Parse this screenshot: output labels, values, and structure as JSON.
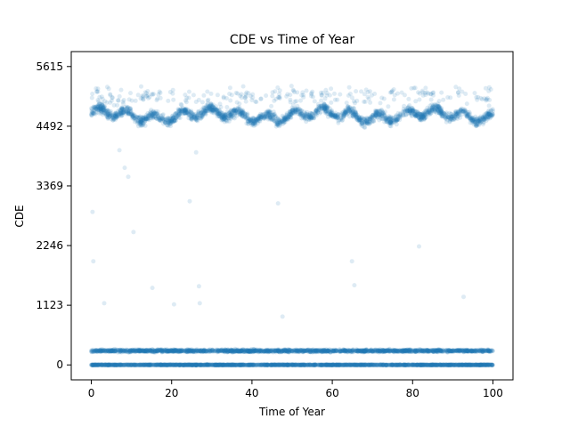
{
  "chart_data": {
    "type": "scatter",
    "title": "CDE vs Time of Year",
    "xlabel": "Time of Year",
    "ylabel": "CDE",
    "xlim": [
      -5,
      105
    ],
    "ylim": [
      -281,
      5896
    ],
    "x_ticks": [
      0,
      20,
      40,
      60,
      80,
      100
    ],
    "x_tick_labels": [
      "0",
      "20",
      "40",
      "60",
      "80",
      "100"
    ],
    "y_ticks": [
      0,
      1123,
      2246,
      3369,
      4492,
      5615
    ],
    "y_tick_labels": [
      "0",
      "1123",
      "2246",
      "3369",
      "4492",
      "5615"
    ],
    "grid": false,
    "legend": "none",
    "series": [
      {
        "color": "#1f77b4",
        "alpha": 0.15,
        "bands": [
          {
            "x_range": [
              0,
              100
            ],
            "y_center": 0,
            "y_spread": 10,
            "description": "dense"
          },
          {
            "x_range": [
              0,
              100
            ],
            "y_center": 265,
            "y_spread": 40,
            "description": "dense"
          },
          {
            "x_range": [
              0,
              100
            ],
            "y_center": 4700,
            "y_spread": 150,
            "description": "dense"
          },
          {
            "x_range": [
              0,
              100
            ],
            "y_center": 5050,
            "y_spread": 300,
            "description": "sparse"
          }
        ],
        "outliers": [
          {
            "x": 0.3,
            "y": 2880
          },
          {
            "x": 0.5,
            "y": 1950
          },
          {
            "x": 3.2,
            "y": 1160
          },
          {
            "x": 7.0,
            "y": 4040
          },
          {
            "x": 8.3,
            "y": 3710
          },
          {
            "x": 9.2,
            "y": 3540
          },
          {
            "x": 10.5,
            "y": 2500
          },
          {
            "x": 15.2,
            "y": 1450
          },
          {
            "x": 20.6,
            "y": 1140
          },
          {
            "x": 24.5,
            "y": 3080
          },
          {
            "x": 26.1,
            "y": 4000
          },
          {
            "x": 26.8,
            "y": 1480
          },
          {
            "x": 27.0,
            "y": 1160
          },
          {
            "x": 46.5,
            "y": 3040
          },
          {
            "x": 47.6,
            "y": 910
          },
          {
            "x": 64.9,
            "y": 1950
          },
          {
            "x": 65.5,
            "y": 1500
          },
          {
            "x": 81.6,
            "y": 2230
          },
          {
            "x": 92.7,
            "y": 1280
          }
        ]
      }
    ]
  }
}
